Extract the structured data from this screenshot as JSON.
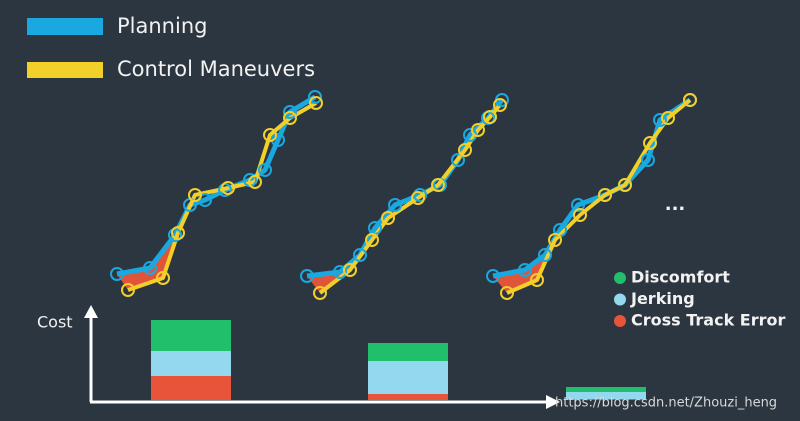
{
  "legend": {
    "planning": "Planning",
    "control": "Control Maneuvers"
  },
  "ellipsis": "...",
  "watermark": "https://blog.csdn.net/Zhouzi_heng",
  "chart_data": {
    "type": "bar",
    "stacked": true,
    "y_label": "Cost",
    "categories": [
      null,
      null,
      null
    ],
    "ylim": [
      0,
      90
    ],
    "series": [
      {
        "name": "Discomfort",
        "color": "#21bf6b",
        "values": [
          31,
          18,
          5
        ]
      },
      {
        "name": "Jerking",
        "color": "#94d8ef",
        "values": [
          25,
          33,
          7
        ]
      },
      {
        "name": "Cross Track Error",
        "color": "#e8543a",
        "values": [
          24,
          6,
          1
        ]
      }
    ]
  }
}
